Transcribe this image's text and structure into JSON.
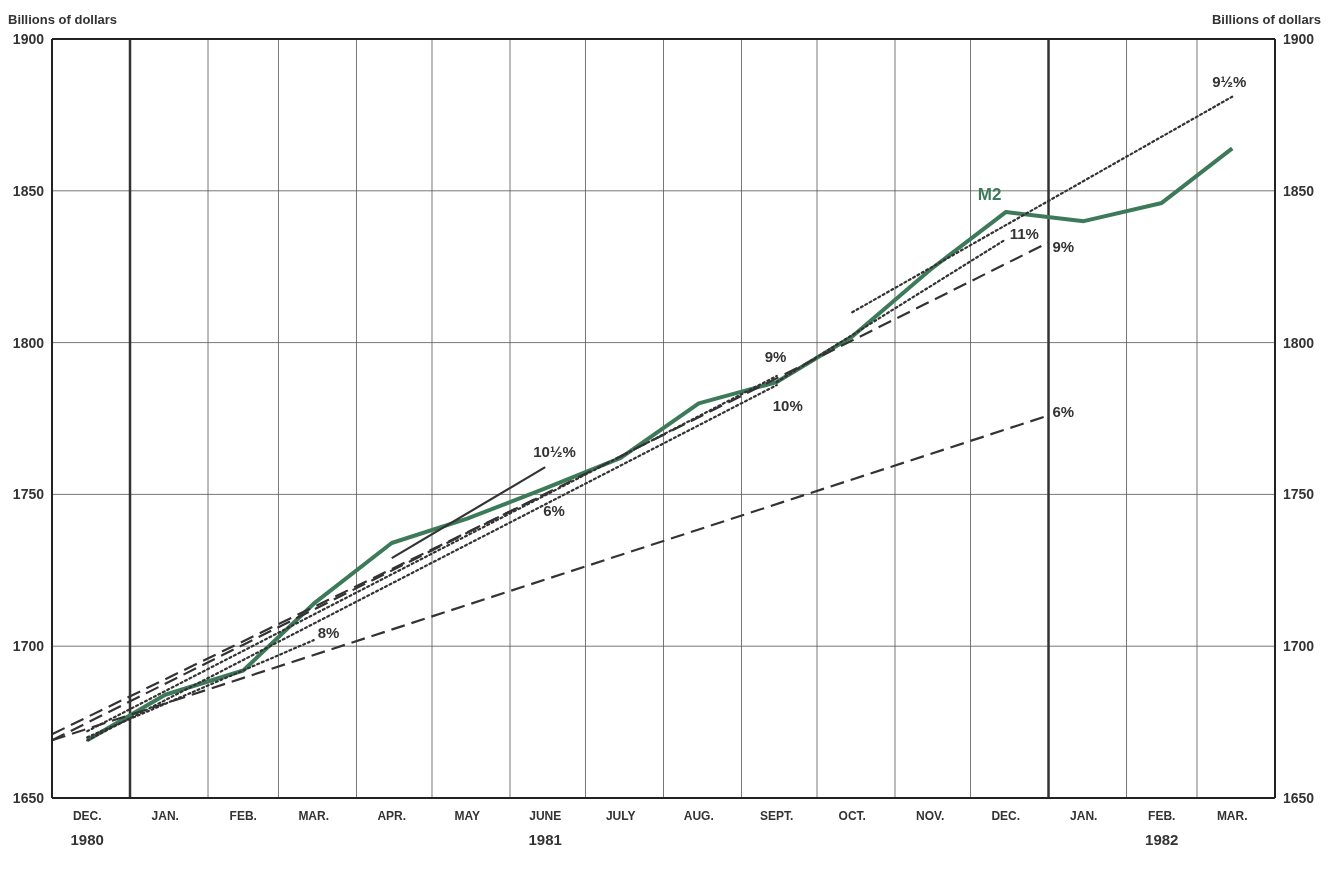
{
  "chart_data": {
    "type": "line",
    "ylabel": "Billions of dollars",
    "y2label": "Billions of dollars",
    "x": [
      "1980-12-15",
      "1981-01-15",
      "1981-02-15",
      "1981-03-15",
      "1981-04-15",
      "1981-05-15",
      "1981-06-15",
      "1981-07-15",
      "1981-08-15",
      "1981-09-15",
      "1981-10-15",
      "1981-11-15",
      "1981-12-15",
      "1982-01-15",
      "1982-02-15",
      "1982-03-15"
    ],
    "xlim": [
      "1980-12-01",
      "1982-04-01"
    ],
    "xticks": [
      {
        "value": "1980-12-01",
        "label": null
      },
      {
        "value": "1980-12-15",
        "label": "DEC.\n1980"
      },
      {
        "value": "1981-01-15",
        "label": "JAN."
      },
      {
        "value": "1981-02-01",
        "label": null
      },
      {
        "value": "1981-02-15",
        "label": "FEB."
      },
      {
        "value": "1981-03-01",
        "label": null
      },
      {
        "value": "1981-03-15",
        "label": "MAR."
      },
      {
        "value": "1981-04-01",
        "label": null
      },
      {
        "value": "1981-04-15",
        "label": "APR."
      },
      {
        "value": "1981-05-01",
        "label": null
      },
      {
        "value": "1981-05-15",
        "label": "MAY"
      },
      {
        "value": "1981-06-01",
        "label": null
      },
      {
        "value": "1981-06-15",
        "label": "JUNE\n1981"
      },
      {
        "value": "1981-07-01",
        "label": null
      },
      {
        "value": "1981-07-15",
        "label": "JULY"
      },
      {
        "value": "1981-08-01",
        "label": null
      },
      {
        "value": "1981-08-15",
        "label": "AUG."
      },
      {
        "value": "1981-09-01",
        "label": null
      },
      {
        "value": "1981-09-15",
        "label": "SEPT."
      },
      {
        "value": "1981-10-01",
        "label": null
      },
      {
        "value": "1981-10-15",
        "label": "OCT."
      },
      {
        "value": "1981-11-01",
        "label": null
      },
      {
        "value": "1981-11-15",
        "label": "NOV."
      },
      {
        "value": "1981-12-01",
        "label": null
      },
      {
        "value": "1981-12-15",
        "label": "DEC."
      },
      {
        "value": "1982-01-15",
        "label": "JAN."
      },
      {
        "value": "1982-02-01",
        "label": null
      },
      {
        "value": "1982-02-15",
        "label": "FEB.\n1982"
      },
      {
        "value": "1982-03-01",
        "label": null
      },
      {
        "value": "1982-03-15",
        "label": "MAR."
      },
      {
        "value": "1982-04-01",
        "label": null
      }
    ],
    "ylim": [
      1650,
      1900
    ],
    "yticks": [
      1650,
      1700,
      1750,
      1800,
      1850,
      1900
    ],
    "y2lim": [
      1650,
      1900
    ],
    "y2ticks": [
      1650,
      1700,
      1750,
      1800,
      1850,
      1900
    ],
    "grid": true,
    "marker": "none",
    "ref_lines": [
      {
        "axis": "x",
        "value": "1981-01-01",
        "color": "#333333"
      },
      {
        "axis": "x",
        "value": "1982-01-01",
        "color": "#333333"
      }
    ],
    "series": [
      {
        "name": "M2",
        "color": "#3d7a5a",
        "line_style": "solid",
        "values": [
          1669,
          1684,
          1692,
          1714,
          1734,
          1742,
          1752,
          1762,
          1780,
          1787,
          1802,
          1824,
          1843,
          1840,
          1846,
          1864
        ]
      },
      {
        "name": "8%",
        "color": "#333333",
        "line_style": "dotted",
        "x": [
          "1980-12-15",
          "1981-03-15"
        ],
        "values": [
          1670,
          1702
        ]
      },
      {
        "name": "10½%",
        "color": "#333333",
        "line_style": "solid",
        "x": [
          "1981-04-15",
          "1981-06-15"
        ],
        "values": [
          1729,
          1759
        ]
      },
      {
        "name": "6%",
        "color": "#333333",
        "line_style": "dashed",
        "x": [
          "1980-12-01",
          "1981-06-15"
        ],
        "values": [
          1671,
          1750
        ]
      },
      {
        "name": "9%",
        "color": "#333333",
        "line_style": "dotted",
        "x": [
          "1980-12-15",
          "1981-09-15"
        ],
        "values": [
          1672,
          1789
        ]
      },
      {
        "name": "10%",
        "color": "#333333",
        "line_style": "dotted",
        "x": [
          "1980-12-15",
          "1981-09-15"
        ],
        "values": [
          1669,
          1786
        ]
      },
      {
        "name": "11%",
        "color": "#333333",
        "line_style": "dotted",
        "x": [
          "1981-09-15",
          "1981-12-15"
        ],
        "values": [
          1787,
          1834
        ]
      },
      {
        "name": "9½%",
        "color": "#333333",
        "line_style": "dotted",
        "x": [
          "1981-10-15",
          "1982-03-15"
        ],
        "values": [
          1810,
          1881
        ]
      },
      {
        "name": "9%",
        "color": "#333333",
        "line_style": "dashed",
        "x": [
          "1980-12-01",
          "1982-01-01"
        ],
        "values": [
          1669,
          1833
        ]
      },
      {
        "name": "6%",
        "color": "#333333",
        "line_style": "dashed",
        "x": [
          "1980-12-01",
          "1982-01-01"
        ],
        "values": [
          1669,
          1776
        ]
      }
    ]
  }
}
